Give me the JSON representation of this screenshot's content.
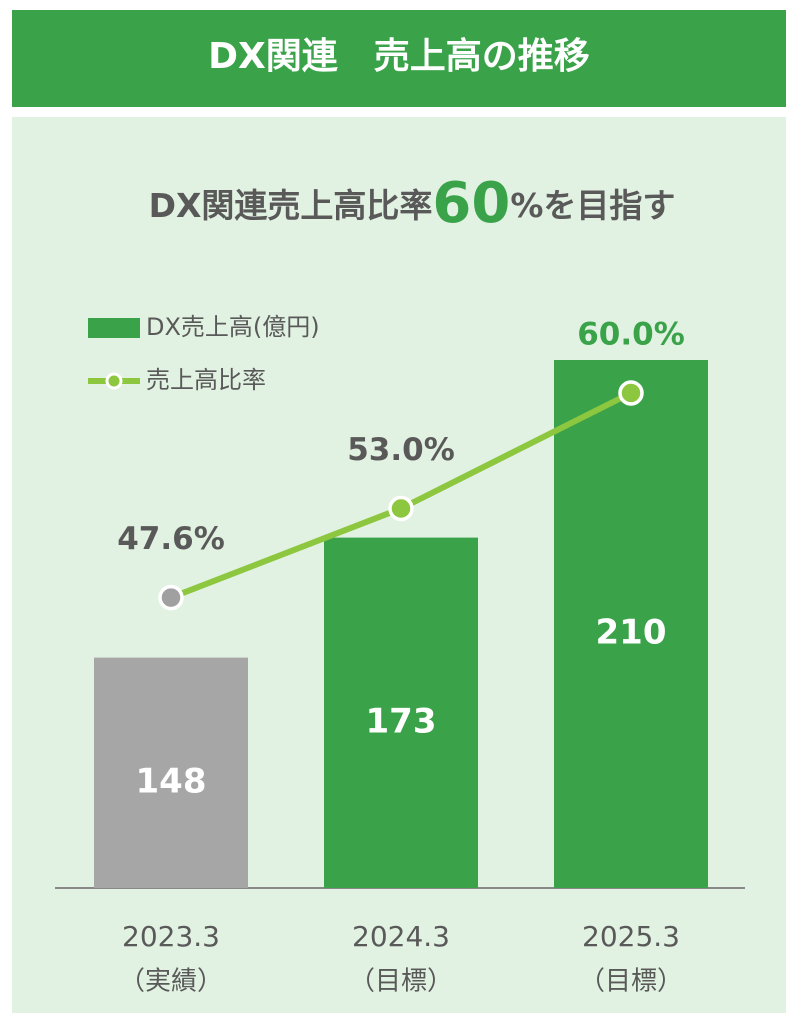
{
  "title": "DX関連　売上高の推移",
  "subtitle_parts": [
    "DX関連売上高比率",
    "60",
    "%を目指す"
  ],
  "chart_data": {
    "type": "bar-line",
    "categories": [
      "2023.3",
      "2024.3",
      "2025.3"
    ],
    "category_notes": [
      "（実績）",
      "（目標）",
      "（目標）"
    ],
    "ylim": [
      100,
      210
    ],
    "y2lim": [
      30,
      62
    ],
    "series": [
      {
        "name": "DX売上高(億円)",
        "type": "bar",
        "color": "#3aa34a",
        "colors": [
          "#a6a6a6",
          "#3aa34a",
          "#3aa34a"
        ],
        "values": [
          148,
          173,
          210
        ]
      },
      {
        "name": "売上高比率",
        "type": "line",
        "axis": "y2",
        "color": "#8dc63f",
        "colors": [
          "#a0a0a0",
          "#8dc63f",
          "#8dc63f"
        ],
        "label_colors": [
          "#595959",
          "#595959",
          "#3aa34a"
        ],
        "values": [
          47.6,
          53.0,
          60.0
        ],
        "value_labels": [
          "47.6%",
          "53.0%",
          "60.0%"
        ]
      }
    ]
  }
}
